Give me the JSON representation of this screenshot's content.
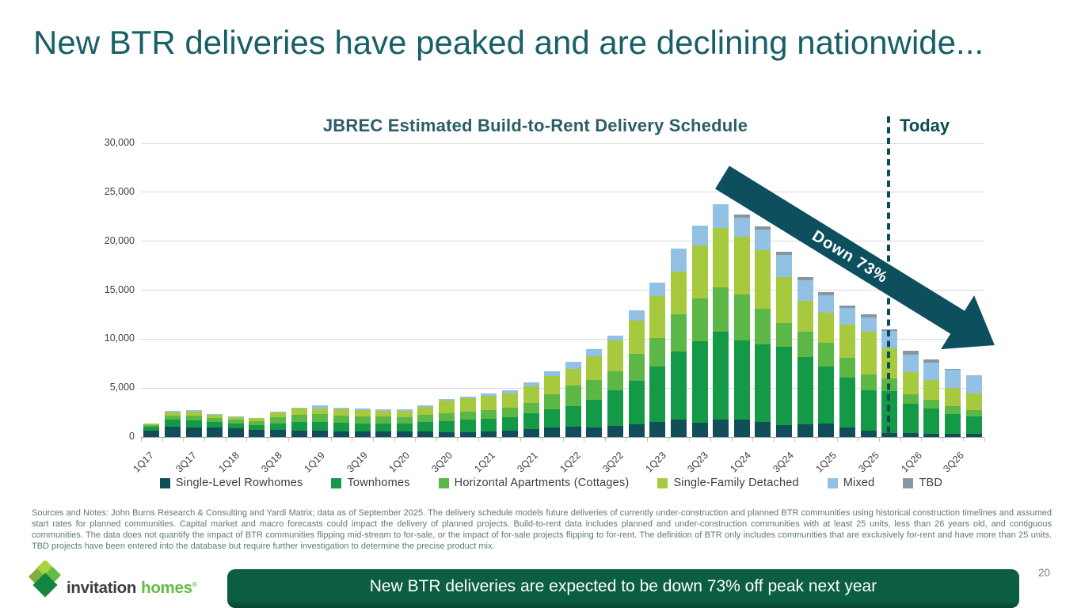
{
  "slide": {
    "title": "New BTR deliveries have peaked and are declining nationwide...",
    "notes": "Sources and Notes: John Burns Research & Consulting and Yardi Matrix; data as of September 2025. The delivery schedule models future deliveries of currently under-construction and planned BTR communities using historical construction timelines and assumed start rates for planned communities. Capital market and macro forecasts could impact the delivery of planned projects. Build-to-rent data includes planned and under-construction communities with at least 25 units, less than 26 years old, and contiguous communities. The data does not quantify the impact of BTR communities flipping mid-stream to for-sale, or the impact of for-sale projects flipping to for-rent. The definition of BTR only includes communities that are exclusively for-rent and have more than 25 units. TBD projects have been entered into the database but require further investigation to determine the precise product mix.",
    "footer_banner": "New BTR deliveries are expected to be down 73% off peak next year",
    "page_number": "20",
    "logo": {
      "word1": "invitation",
      "word2": "homes",
      "reg": "®"
    }
  },
  "chart_data": {
    "type": "bar",
    "stacked": true,
    "title": "JBREC Estimated Build-to-Rent Delivery Schedule",
    "today_label": "Today",
    "annotation_label": "Down 73%",
    "arrow_color": "#0e4f5d",
    "today_line_color": "#0c4a57",
    "ylim": [
      0,
      30000
    ],
    "y_ticks": [
      "0",
      "5,000",
      "10,000",
      "15,000",
      "20,000",
      "25,000",
      "30,000"
    ],
    "x_tick_labels": [
      "1Q17",
      "3Q17",
      "1Q18",
      "3Q18",
      "1Q19",
      "3Q19",
      "1Q20",
      "3Q20",
      "1Q21",
      "3Q21",
      "1Q22",
      "3Q22",
      "1Q23",
      "3Q23",
      "1Q24",
      "3Q24",
      "1Q25",
      "3Q25",
      "1Q26",
      "3Q26"
    ],
    "categories": [
      "1Q17",
      "2Q17",
      "3Q17",
      "4Q17",
      "1Q18",
      "2Q18",
      "3Q18",
      "4Q18",
      "1Q19",
      "2Q19",
      "3Q19",
      "4Q19",
      "1Q20",
      "2Q20",
      "3Q20",
      "4Q20",
      "1Q21",
      "2Q21",
      "3Q21",
      "4Q21",
      "1Q22",
      "2Q22",
      "3Q22",
      "4Q22",
      "1Q23",
      "2Q23",
      "3Q23",
      "4Q23",
      "1Q24",
      "2Q24",
      "3Q24",
      "4Q24",
      "1Q25",
      "2Q25",
      "3Q25",
      "4Q25",
      "1Q26",
      "2Q26",
      "3Q26",
      "4Q26"
    ],
    "series": [
      {
        "name": "Single-Level Rowhomes",
        "color": "#104e5a",
        "values": [
          620,
          1075,
          1000,
          950,
          850,
          700,
          700,
          650,
          620,
          600,
          580,
          560,
          550,
          600,
          500,
          520,
          570,
          620,
          800,
          950,
          1050,
          970,
          1160,
          1320,
          1515,
          1780,
          1450,
          1780,
          1780,
          1500,
          1215,
          1295,
          1350,
          970,
          620,
          380,
          430,
          300,
          350,
          330
        ]
      },
      {
        "name": "Townhomes",
        "color": "#149a47",
        "values": [
          410,
          705,
          700,
          600,
          550,
          500,
          700,
          900,
          900,
          850,
          830,
          800,
          800,
          900,
          1150,
          1250,
          1300,
          1400,
          1600,
          1900,
          2130,
          2830,
          3590,
          4450,
          5660,
          6955,
          8350,
          8955,
          8100,
          8000,
          7980,
          6900,
          5875,
          5070,
          4130,
          4290,
          2970,
          2610,
          2020,
          1800
        ]
      },
      {
        "name": "Horizontal Apartments (Cottages)",
        "color": "#5db747",
        "values": [
          200,
          405,
          450,
          400,
          380,
          400,
          600,
          750,
          800,
          750,
          730,
          720,
          700,
          750,
          800,
          850,
          900,
          950,
          1100,
          1500,
          2100,
          2025,
          1965,
          2750,
          2915,
          3830,
          4315,
          4530,
          4710,
          3600,
          2455,
          2565,
          2425,
          2050,
          1665,
          1290,
          990,
          890,
          760,
          595
        ]
      },
      {
        "name": "Single-Family Detached",
        "color": "#a6c93e",
        "values": [
          150,
          325,
          400,
          300,
          280,
          315,
          500,
          600,
          600,
          620,
          630,
          590,
          600,
          800,
          1230,
          1330,
          1430,
          1500,
          1700,
          1850,
          1680,
          2450,
          3155,
          3370,
          4310,
          4365,
          5440,
          6115,
          5850,
          6000,
          4700,
          3160,
          3050,
          3400,
          4320,
          3100,
          2240,
          2025,
          1885,
          1750
        ]
      },
      {
        "name": "Mixed",
        "color": "#92c1e4",
        "values": [
          0,
          135,
          175,
          70,
          40,
          0,
          90,
          90,
          280,
          180,
          180,
          180,
          150,
          200,
          200,
          200,
          250,
          300,
          400,
          500,
          750,
          705,
          460,
          1080,
          1350,
          2320,
          2045,
          2380,
          1970,
          2050,
          2270,
          2100,
          1800,
          1680,
          1495,
          1740,
          1760,
          1755,
          1835,
          1815
        ]
      },
      {
        "name": "TBD",
        "color": "#85989f",
        "values": [
          0,
          0,
          0,
          0,
          0,
          0,
          0,
          0,
          0,
          0,
          0,
          0,
          0,
          0,
          0,
          0,
          0,
          0,
          0,
          0,
          0,
          0,
          0,
          0,
          0,
          0,
          0,
          0,
          350,
          380,
          320,
          320,
          300,
          280,
          270,
          200,
          400,
          350,
          110,
          0
        ]
      }
    ]
  }
}
